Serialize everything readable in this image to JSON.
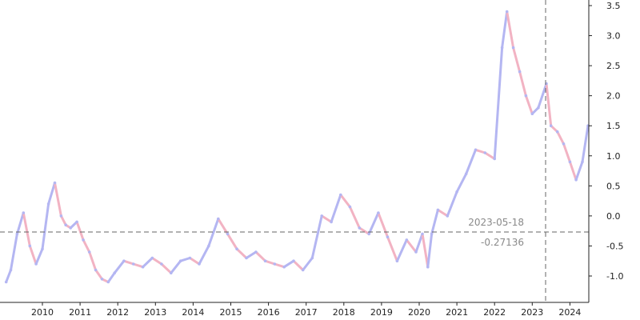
{
  "chart_data": {
    "type": "line",
    "title": "",
    "xlabel": "",
    "ylabel": "",
    "xlim": [
      "2009-01-01",
      "2024-07-01"
    ],
    "ylim": [
      -1.45,
      3.55
    ],
    "x_ticks": [
      "2010",
      "2011",
      "2012",
      "2013",
      "2014",
      "2015",
      "2016",
      "2017",
      "2018",
      "2019",
      "2020",
      "2021",
      "2022",
      "2023",
      "2024"
    ],
    "y_ticks": [
      "3.5",
      "3.0",
      "2.5",
      "2.0",
      "1.5",
      "1.0",
      "0.5",
      "0.0",
      "-0.5",
      "-1.0"
    ],
    "grid": false,
    "legend": "none",
    "crosshair": {
      "date": "2023-05-18",
      "value": "-0.27136"
    },
    "colors": {
      "up": "#b4b6f2",
      "down": "#f2b3c3",
      "crosshair": "#666666",
      "text": "#222222",
      "label": "#8a8a8a"
    },
    "x": [
      "2009-01-15",
      "2009-03-01",
      "2009-05-01",
      "2009-07-01",
      "2009-09-01",
      "2009-11-01",
      "2010-01-01",
      "2010-03-01",
      "2010-05-01",
      "2010-07-01",
      "2010-08-15",
      "2010-10-01",
      "2010-12-01",
      "2011-02-01",
      "2011-04-01",
      "2011-06-01",
      "2011-08-01",
      "2011-10-01",
      "2011-12-01",
      "2012-03-01",
      "2012-06-01",
      "2012-09-01",
      "2012-12-01",
      "2013-03-01",
      "2013-06-01",
      "2013-09-01",
      "2013-12-01",
      "2014-03-01",
      "2014-06-01",
      "2014-09-01",
      "2014-12-01",
      "2015-03-01",
      "2015-06-01",
      "2015-09-01",
      "2015-12-01",
      "2016-03-01",
      "2016-06-01",
      "2016-09-01",
      "2016-12-01",
      "2017-03-01",
      "2017-06-01",
      "2017-09-01",
      "2017-12-01",
      "2018-03-01",
      "2018-06-01",
      "2018-09-01",
      "2018-12-01",
      "2019-03-01",
      "2019-06-01",
      "2019-09-01",
      "2019-12-01",
      "2020-02-01",
      "2020-03-25",
      "2020-05-01",
      "2020-07-01",
      "2020-10-01",
      "2021-01-01",
      "2021-04-01",
      "2021-07-01",
      "2021-10-01",
      "2022-01-01",
      "2022-03-15",
      "2022-05-01",
      "2022-07-01",
      "2022-09-01",
      "2022-11-01",
      "2023-01-01",
      "2023-03-01",
      "2023-05-18",
      "2023-07-01",
      "2023-09-01",
      "2023-11-01",
      "2024-01-01",
      "2024-03-01",
      "2024-05-01",
      "2024-06-25"
    ],
    "values": [
      -1.1,
      -0.9,
      -0.3,
      0.05,
      -0.5,
      -0.8,
      -0.55,
      0.2,
      0.55,
      0.0,
      -0.15,
      -0.2,
      -0.1,
      -0.4,
      -0.6,
      -0.9,
      -1.05,
      -1.1,
      -0.95,
      -0.75,
      -0.8,
      -0.85,
      -0.7,
      -0.8,
      -0.95,
      -0.75,
      -0.7,
      -0.8,
      -0.5,
      -0.05,
      -0.3,
      -0.55,
      -0.7,
      -0.6,
      -0.75,
      -0.8,
      -0.85,
      -0.75,
      -0.9,
      -0.7,
      0.0,
      -0.1,
      0.35,
      0.15,
      -0.2,
      -0.3,
      0.05,
      -0.35,
      -0.75,
      -0.4,
      -0.6,
      -0.3,
      -0.85,
      -0.3,
      0.1,
      0.0,
      0.4,
      0.7,
      1.1,
      1.05,
      0.95,
      2.8,
      3.4,
      2.8,
      2.4,
      2.0,
      1.7,
      1.8,
      2.2,
      1.5,
      1.4,
      1.2,
      0.9,
      0.6,
      0.9,
      1.5
    ]
  }
}
